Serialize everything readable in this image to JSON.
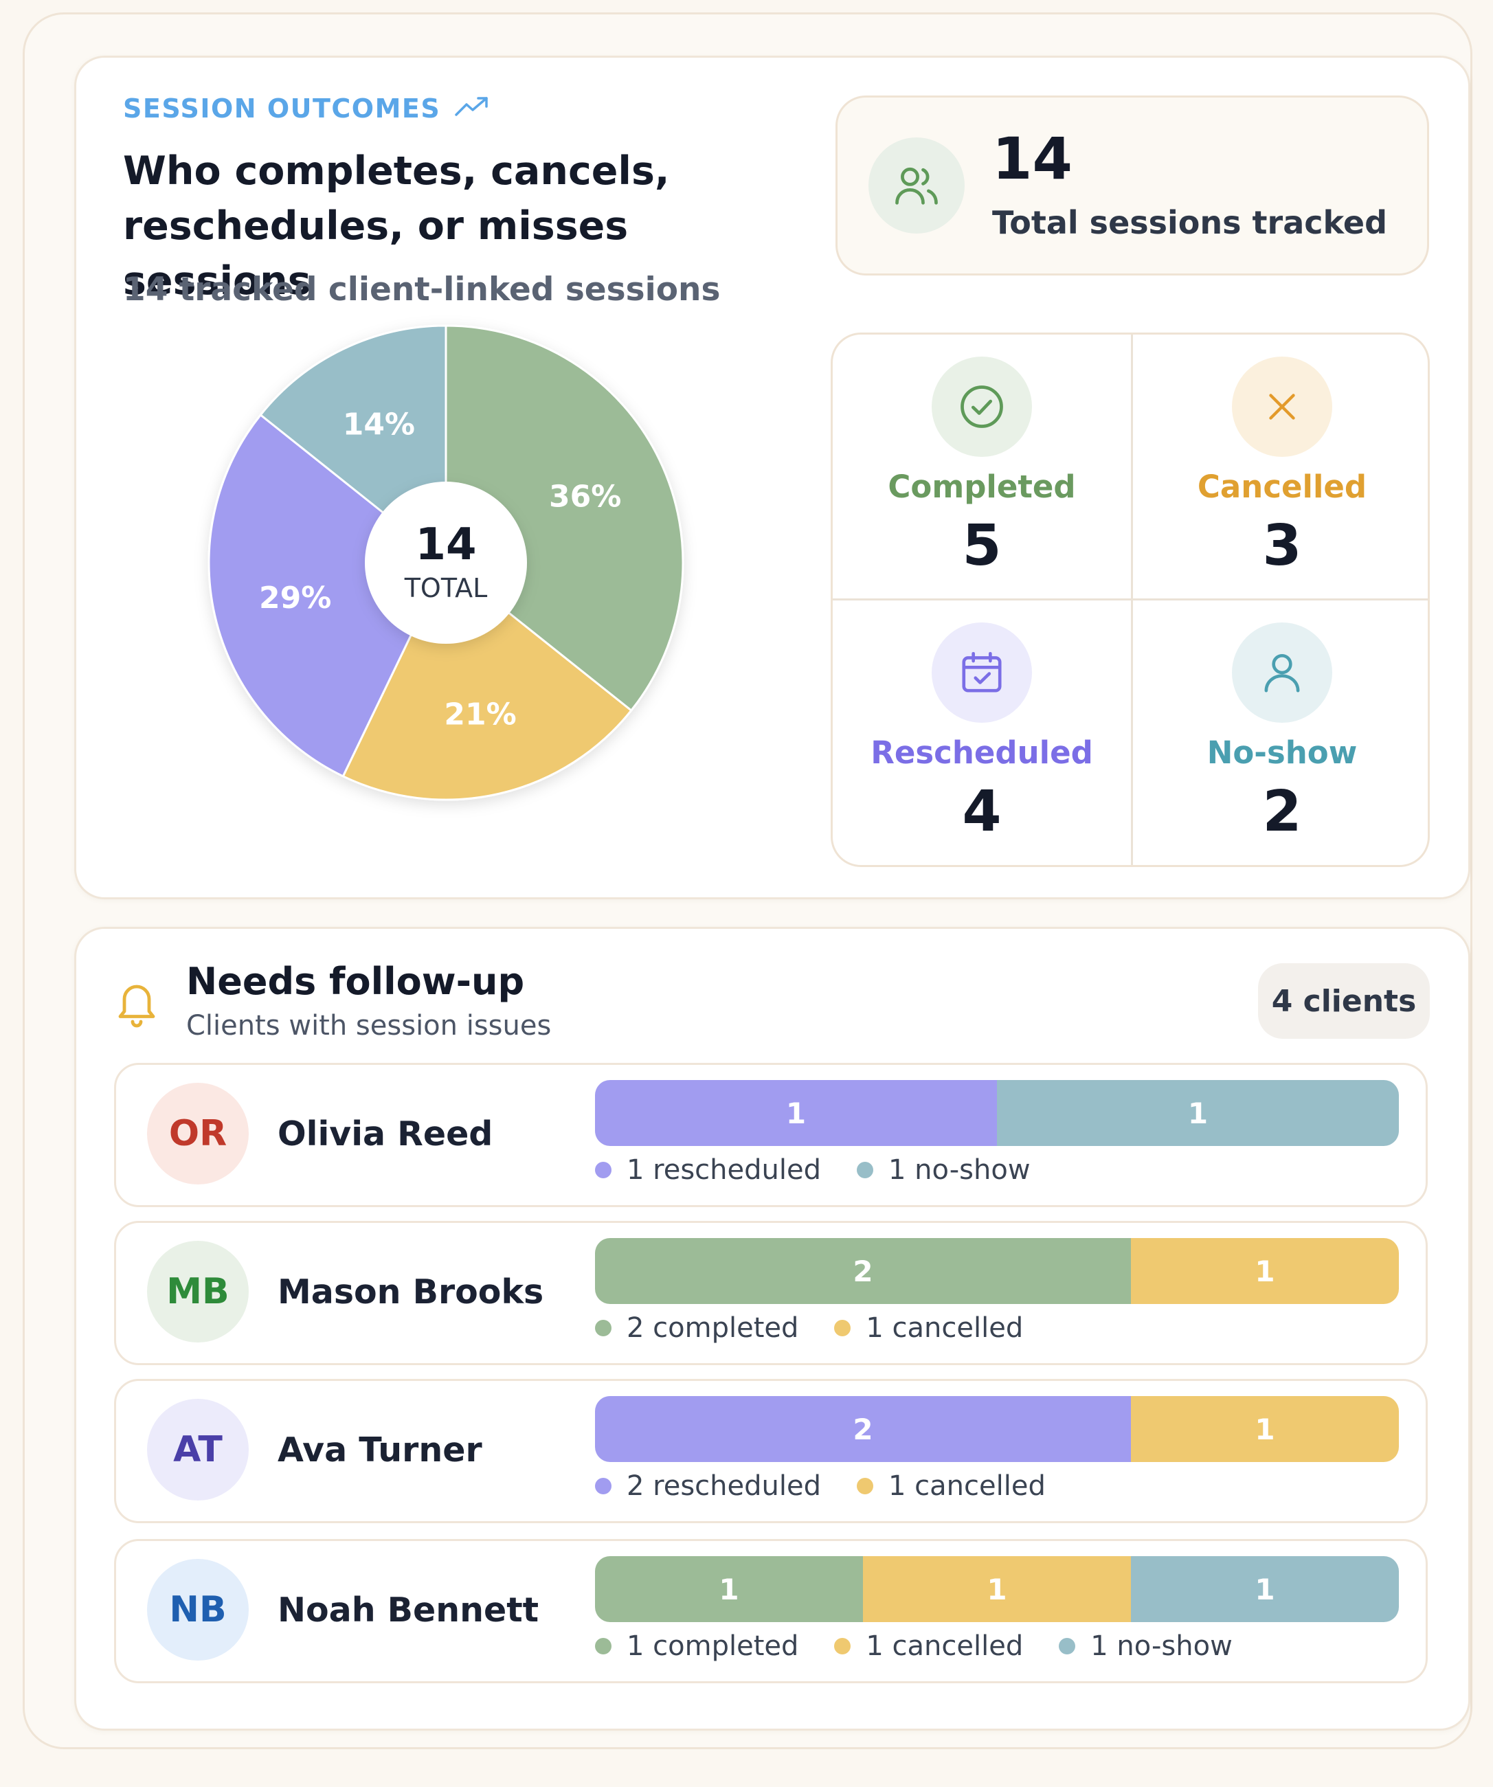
{
  "colors": {
    "completed": "#9cbb97",
    "cancelled": "#efc970",
    "rescheduled": "#a19cf0",
    "noshow": "#98bec8"
  },
  "header": {
    "eyebrow": "SESSION OUTCOMES",
    "eyebrow_icon": "trending-up-icon",
    "title": "Who completes, cancels, reschedules, or misses sessions",
    "subtitle": "14 tracked client-linked sessions"
  },
  "chart_data": {
    "type": "pie",
    "categories": [
      "Completed",
      "Cancelled",
      "Rescheduled",
      "No-show"
    ],
    "values": [
      5,
      3,
      4,
      2
    ],
    "labels": [
      "36%",
      "21%",
      "29%",
      "14%"
    ],
    "center_value": "14",
    "center_label": "TOTAL"
  },
  "total": {
    "icon": "users-icon",
    "value": "14",
    "label": "Total sessions tracked"
  },
  "outcomes": [
    {
      "key": "completed",
      "icon": "check-circle-icon",
      "label": "Completed",
      "value": "5",
      "label_color": "#6a9a5f",
      "bg": "#e9f1e7"
    },
    {
      "key": "cancelled",
      "icon": "x-icon",
      "label": "Cancelled",
      "value": "3",
      "label_color": "#e0a030",
      "bg": "#fbf0dd"
    },
    {
      "key": "rescheduled",
      "icon": "calendar-check-icon",
      "label": "Rescheduled",
      "value": "4",
      "label_color": "#7b6ee6",
      "bg": "#ecebfc"
    },
    {
      "key": "noshow",
      "icon": "user-icon",
      "label": "No-show",
      "value": "2",
      "label_color": "#4a9fb0",
      "bg": "#e6f1f3"
    }
  ],
  "followup": {
    "icon": "bell-icon",
    "title": "Needs follow-up",
    "subtitle": "Clients with session issues",
    "badge": "4 clients",
    "clients": [
      {
        "initials": "OR",
        "name": "Olivia Reed",
        "avatar_bg": "#fbe8e3",
        "avatar_fg": "#c0392b",
        "segments": [
          {
            "key": "rescheduled",
            "count": 1
          },
          {
            "key": "noshow",
            "count": 1
          }
        ],
        "legend": [
          "1 rescheduled",
          "1 no-show"
        ]
      },
      {
        "initials": "MB",
        "name": "Mason Brooks",
        "avatar_bg": "#e9f1e7",
        "avatar_fg": "#2e8b3a",
        "segments": [
          {
            "key": "completed",
            "count": 2
          },
          {
            "key": "cancelled",
            "count": 1
          }
        ],
        "legend": [
          "2 completed",
          "1 cancelled"
        ]
      },
      {
        "initials": "AT",
        "name": "Ava Turner",
        "avatar_bg": "#ecebfb",
        "avatar_fg": "#4a3fa8",
        "segments": [
          {
            "key": "rescheduled",
            "count": 2
          },
          {
            "key": "cancelled",
            "count": 1
          }
        ],
        "legend": [
          "2 rescheduled",
          "1 cancelled"
        ]
      },
      {
        "initials": "NB",
        "name": "Noah Bennett",
        "avatar_bg": "#e3eefb",
        "avatar_fg": "#1f5fb0",
        "segments": [
          {
            "key": "completed",
            "count": 1
          },
          {
            "key": "cancelled",
            "count": 1
          },
          {
            "key": "noshow",
            "count": 1
          }
        ],
        "legend": [
          "1 completed",
          "1 cancelled",
          "1 no-show"
        ]
      }
    ]
  }
}
